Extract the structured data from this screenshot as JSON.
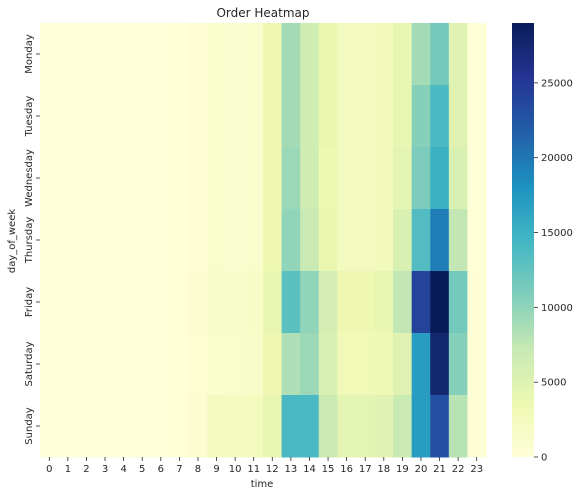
{
  "chart_data": {
    "type": "heatmap",
    "title": "Order Heatmap",
    "xlabel": "time",
    "ylabel": "day_of_week",
    "x": [
      "0",
      "1",
      "2",
      "3",
      "4",
      "5",
      "6",
      "7",
      "8",
      "9",
      "10",
      "11",
      "12",
      "13",
      "14",
      "15",
      "16",
      "17",
      "18",
      "19",
      "20",
      "21",
      "22",
      "23"
    ],
    "y": [
      "Monday",
      "Tuesday",
      "Wednesday",
      "Thursday",
      "Friday",
      "Saturday",
      "Sunday"
    ],
    "values": [
      [
        10,
        5,
        3,
        2,
        2,
        2,
        5,
        50,
        400,
        1200,
        1000,
        1200,
        3500,
        9000,
        6500,
        3800,
        2400,
        2400,
        2800,
        4200,
        9000,
        11500,
        5000,
        200
      ],
      [
        10,
        5,
        3,
        2,
        2,
        2,
        5,
        50,
        400,
        1200,
        1000,
        1200,
        3500,
        9000,
        6500,
        3800,
        2400,
        2400,
        2800,
        4200,
        10500,
        14000,
        5000,
        200
      ],
      [
        10,
        5,
        3,
        2,
        2,
        2,
        5,
        50,
        400,
        1200,
        1000,
        1200,
        3500,
        9500,
        6500,
        3600,
        2400,
        2400,
        2800,
        4500,
        11000,
        15000,
        5500,
        200
      ],
      [
        10,
        5,
        3,
        2,
        2,
        2,
        5,
        50,
        400,
        1200,
        1000,
        1200,
        3500,
        10000,
        7000,
        3800,
        2400,
        2400,
        2800,
        5500,
        13500,
        19500,
        7500,
        200
      ],
      [
        20,
        8,
        5,
        3,
        3,
        3,
        8,
        100,
        800,
        1500,
        1400,
        1600,
        4000,
        13000,
        10000,
        6000,
        3500,
        3500,
        4000,
        7500,
        24000,
        29000,
        11500,
        300
      ],
      [
        20,
        8,
        5,
        3,
        3,
        3,
        8,
        100,
        600,
        1200,
        1200,
        1500,
        3500,
        8500,
        9500,
        5500,
        3000,
        3000,
        3200,
        5000,
        17000,
        27500,
        10500,
        300
      ],
      [
        30,
        10,
        6,
        4,
        4,
        4,
        10,
        150,
        800,
        2500,
        2200,
        2500,
        4200,
        14000,
        14000,
        7000,
        4500,
        4500,
        4800,
        7000,
        17000,
        23000,
        8000,
        300
      ]
    ],
    "vmin": 0,
    "vmax": 29000,
    "colormap": "YlGnBu",
    "colorbar_ticks": [
      0,
      5000,
      10000,
      15000,
      20000,
      25000
    ],
    "colorbar_tick_labels": [
      "0",
      "5000",
      "10000",
      "15000",
      "20000",
      "25000"
    ],
    "grid": false,
    "legend": "colorbar-right"
  }
}
